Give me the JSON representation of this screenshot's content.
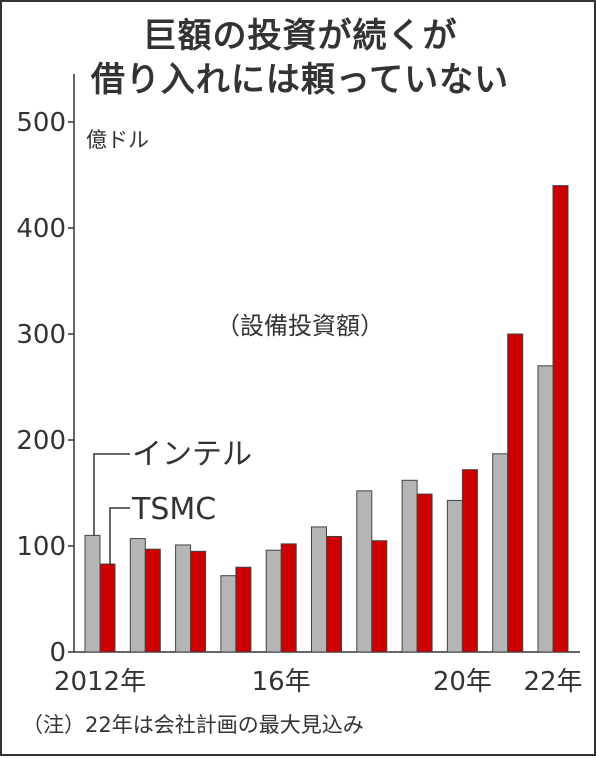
{
  "chart_data": {
    "type": "bar",
    "title_lines": [
      "巨額の投資が続くが",
      "借り入れには頼っていない"
    ],
    "unit": "億ドル",
    "annotation": "（設備投資額）",
    "footnote": "（注）22年は会社計画の最大見込み",
    "categories": [
      "2012年",
      "",
      "",
      "",
      "16年",
      "",
      "",
      "",
      "20年",
      "",
      "22年"
    ],
    "series": [
      {
        "name": "インテル",
        "color": "#b5b5b5",
        "values": [
          110,
          107,
          101,
          72,
          96,
          118,
          152,
          162,
          143,
          187,
          270
        ]
      },
      {
        "name": "TSMC",
        "color": "#cc0000",
        "values": [
          83,
          97,
          95,
          80,
          102,
          109,
          105,
          149,
          172,
          300,
          440
        ]
      }
    ],
    "yticks": [
      "0",
      "100",
      "200",
      "300",
      "400",
      "500"
    ],
    "ylim": [
      0,
      500
    ],
    "grid": false
  }
}
